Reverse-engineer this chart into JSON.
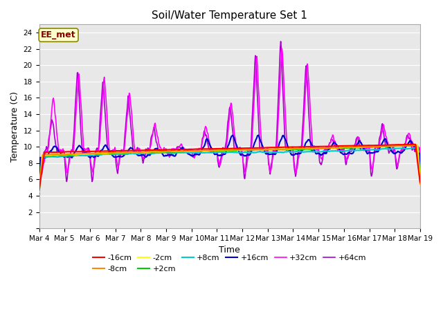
{
  "title": "Soil/Water Temperature Set 1",
  "xlabel": "Time",
  "ylabel": "Temperature (C)",
  "ylim": [
    0,
    25
  ],
  "yticks": [
    0,
    2,
    4,
    6,
    8,
    10,
    12,
    14,
    16,
    18,
    20,
    22,
    24
  ],
  "annotation": "EE_met",
  "annotation_bg": "#ffffcc",
  "annotation_border": "#888800",
  "annotation_text_color": "#880000",
  "plot_bg": "#e8e8e8",
  "series": {
    "-16cm": {
      "color": "#ff0000",
      "lw": 1.5
    },
    "-8cm": {
      "color": "#ff8800",
      "lw": 1.5
    },
    "-2cm": {
      "color": "#ffff00",
      "lw": 1.5
    },
    "+2cm": {
      "color": "#00cc00",
      "lw": 1.5
    },
    "+8cm": {
      "color": "#00cccc",
      "lw": 1.5
    },
    "+16cm": {
      "color": "#0000cc",
      "lw": 1.5
    },
    "+32cm": {
      "color": "#ff00ff",
      "lw": 1.2
    },
    "+64cm": {
      "color": "#aa00cc",
      "lw": 1.2
    }
  },
  "xtick_labels": [
    "Mar 4",
    "Mar 5",
    "Mar 6",
    "Mar 7",
    "Mar 8",
    "Mar 9",
    "Mar 10",
    "Mar 11",
    "Mar 12",
    "Mar 13",
    "Mar 14",
    "Mar 15",
    "Mar 16",
    "Mar 17",
    "Mar 18",
    "Mar 19"
  ]
}
